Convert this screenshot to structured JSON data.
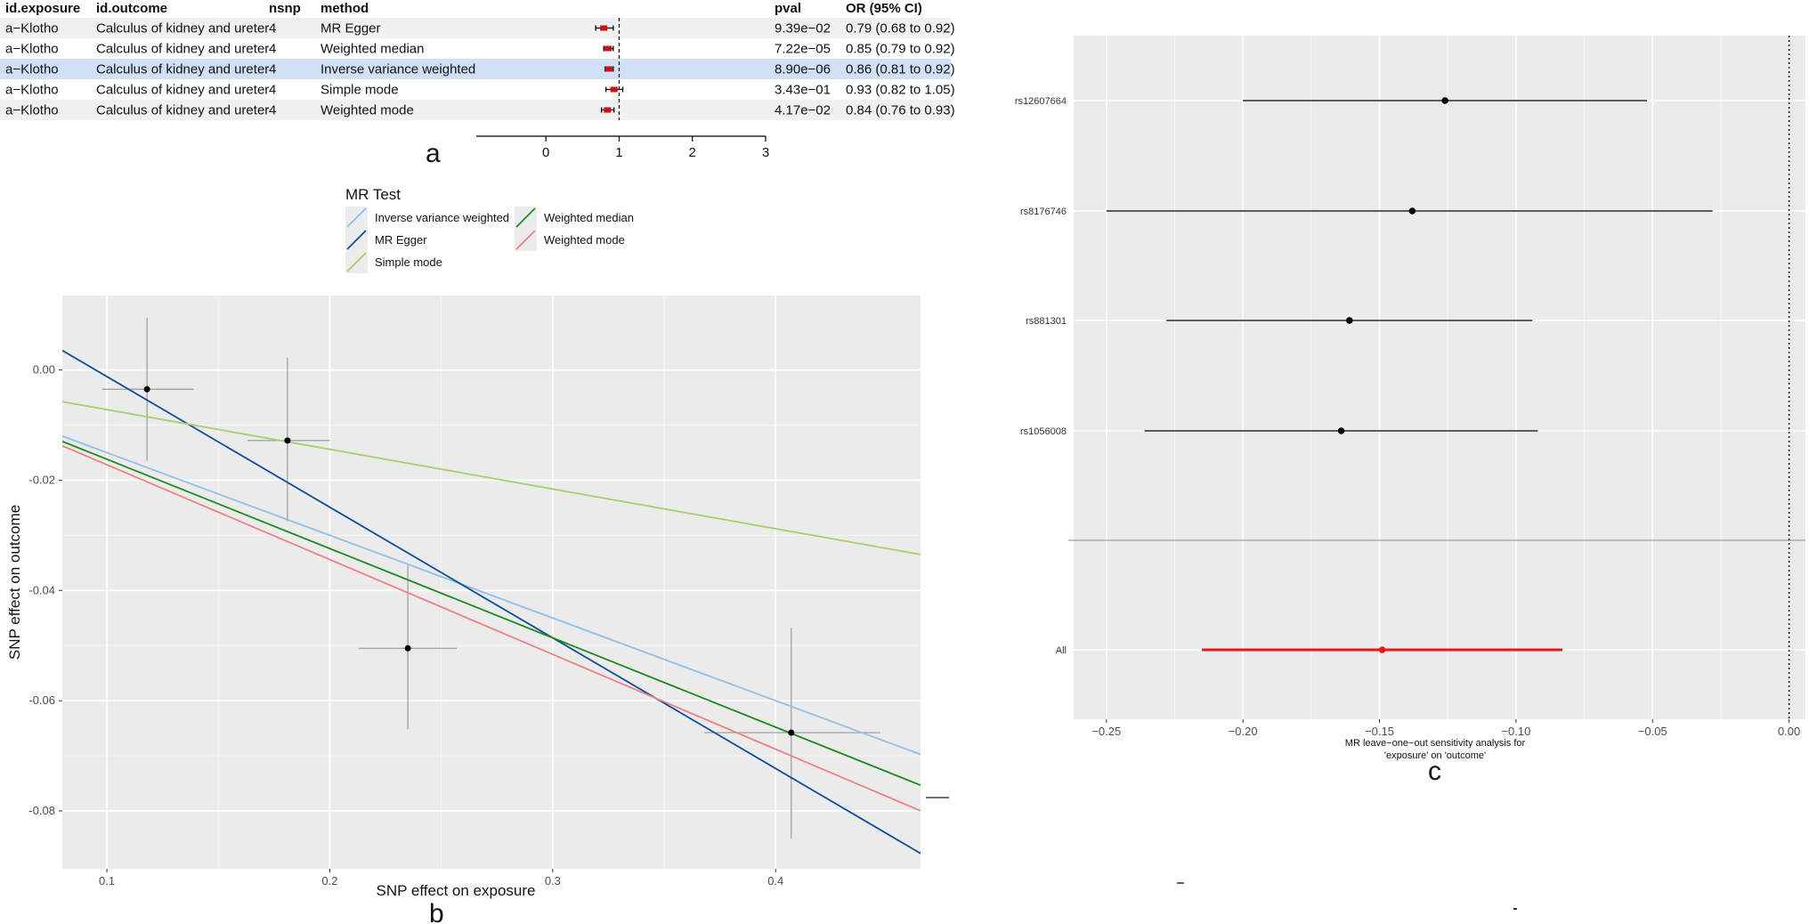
{
  "panel_labels": {
    "a": "a",
    "b": "b",
    "c": "c"
  },
  "colors": {
    "panel_bg": "#ebebeb",
    "grid": "#ffffff",
    "table_stripe": "#eef1ee",
    "table_highlight": "#cfe0f7",
    "ivw": "#8ec1e6",
    "egger": "#0b4f9c",
    "simple": "#a6cf6a",
    "wmedian": "#1a8a1a",
    "wmode": "#f08080",
    "loo_all": "#e31a1c",
    "point": "#000000"
  },
  "chart_data": [
    {
      "panel": "a",
      "type": "table",
      "columns": [
        "id.exposure",
        "id.outcome",
        "nsnp",
        "method",
        "pval",
        "OR (95% CI)"
      ],
      "rows": [
        {
          "exposure": "a−Klotho",
          "outcome": "Calculus of kidney and ureter",
          "nsnp": "4",
          "method": "MR Egger",
          "pval": "9.39e−02",
          "or_text": "0.79 (0.68 to 0.92)",
          "or": 0.79,
          "lo": 0.68,
          "hi": 0.92,
          "highlight": false
        },
        {
          "exposure": "a−Klotho",
          "outcome": "Calculus of kidney and ureter",
          "nsnp": "4",
          "method": "Weighted median",
          "pval": "7.22e−05",
          "or_text": "0.85 (0.79 to 0.92)",
          "or": 0.85,
          "lo": 0.79,
          "hi": 0.92,
          "highlight": false
        },
        {
          "exposure": "a−Klotho",
          "outcome": "Calculus of kidney and ureter",
          "nsnp": "4",
          "method": "Inverse variance weighted",
          "pval": "8.90e−06",
          "or_text": "0.86 (0.81 to 0.92)",
          "or": 0.86,
          "lo": 0.81,
          "hi": 0.92,
          "highlight": true
        },
        {
          "exposure": "a−Klotho",
          "outcome": "Calculus of kidney and ureter",
          "nsnp": "4",
          "method": "Simple mode",
          "pval": "3.43e−01",
          "or_text": "0.93 (0.82 to 1.05)",
          "or": 0.93,
          "lo": 0.82,
          "hi": 1.05,
          "highlight": false
        },
        {
          "exposure": "a−Klotho",
          "outcome": "Calculus of kidney and ureter",
          "nsnp": "4",
          "method": "Weighted mode",
          "pval": "4.17e−02",
          "or_text": "0.84 (0.76 to 0.93)",
          "or": 0.84,
          "lo": 0.76,
          "hi": 0.93,
          "highlight": false
        }
      ],
      "x_ticks": [
        0,
        1,
        2,
        3
      ],
      "xlim": [
        -0.95,
        3.0
      ],
      "reference": 1
    },
    {
      "panel": "b",
      "type": "scatter",
      "xlabel": "SNP effect on exposure",
      "ylabel": "SNP effect on outcome",
      "xlim": [
        0.08,
        0.465
      ],
      "ylim": [
        -0.0905,
        0.0135
      ],
      "x_ticks": [
        0.1,
        0.2,
        0.3,
        0.4
      ],
      "y_ticks": [
        0.0,
        -0.02,
        -0.04,
        -0.06,
        -0.08
      ],
      "legend_title": "MR Test",
      "legend_items": [
        "Inverse variance weighted",
        "MR Egger",
        "Simple mode",
        "Weighted median",
        "Weighted mode"
      ],
      "points": [
        {
          "x": 0.118,
          "y": -0.0035,
          "x_lo": 0.098,
          "x_hi": 0.139,
          "y_lo": -0.0165,
          "y_hi": 0.0095
        },
        {
          "x": 0.181,
          "y": -0.0128,
          "x_lo": 0.163,
          "x_hi": 0.2,
          "y_lo": -0.0275,
          "y_hi": 0.0022
        },
        {
          "x": 0.235,
          "y": -0.0505,
          "x_lo": 0.213,
          "x_hi": 0.257,
          "y_lo": -0.0652,
          "y_hi": -0.0355
        },
        {
          "x": 0.407,
          "y": -0.0658,
          "x_lo": 0.368,
          "x_hi": 0.447,
          "y_lo": -0.085,
          "y_hi": -0.0468
        }
      ],
      "lines": [
        {
          "name": "Inverse variance weighted",
          "color_key": "ivw",
          "intercept": 0,
          "slope": -0.15
        },
        {
          "name": "MR Egger",
          "color_key": "egger",
          "intercept": 0.0225,
          "slope": -0.237
        },
        {
          "name": "Simple mode",
          "color_key": "simple",
          "intercept": 0,
          "slope": -0.072
        },
        {
          "name": "Weighted median",
          "color_key": "wmedian",
          "intercept": 0,
          "slope": -0.162
        },
        {
          "name": "Weighted mode",
          "color_key": "wmode",
          "intercept": 0,
          "slope": -0.172
        }
      ]
    },
    {
      "panel": "c",
      "type": "scatter",
      "xlabel_line1": "MR leave−one−out sensitivity analysis for",
      "xlabel_line2": "'exposure' on 'outcome'",
      "xlim": [
        -0.262,
        0.006
      ],
      "x_ticks": [
        -0.25,
        -0.2,
        -0.15,
        -0.1,
        -0.05,
        0.0
      ],
      "rows": [
        {
          "label": "rs12607664",
          "b": -0.126,
          "lo": -0.2,
          "hi": -0.052,
          "all": false
        },
        {
          "label": "rs8176746",
          "b": -0.138,
          "lo": -0.25,
          "hi": -0.028,
          "all": false
        },
        {
          "label": "rs881301",
          "b": -0.161,
          "lo": -0.228,
          "hi": -0.094,
          "all": false
        },
        {
          "label": "rs1056008",
          "b": -0.164,
          "lo": -0.236,
          "hi": -0.092,
          "all": false
        },
        {
          "label": "All",
          "b": -0.149,
          "lo": -0.215,
          "hi": -0.083,
          "all": true
        }
      ],
      "reference": 0
    }
  ]
}
